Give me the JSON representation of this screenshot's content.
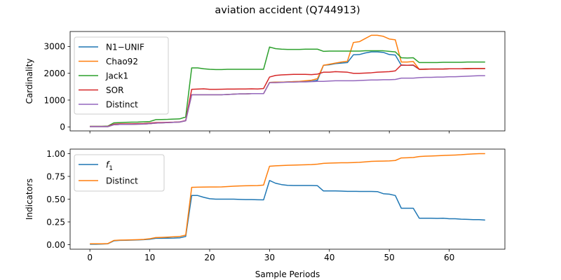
{
  "figure": {
    "title": "aviation accident (Q744913)"
  },
  "chart_data": [
    {
      "type": "line",
      "xlabel": "",
      "ylabel": "Cardinality",
      "xlim": [
        -3.3,
        69.3
      ],
      "ylim": [
        -150,
        3560
      ],
      "xticks": [
        0,
        10,
        20,
        30,
        40,
        50,
        60
      ],
      "yticks": [
        0,
        1000,
        2000,
        3000
      ],
      "ytick_labels": [
        "0",
        "1000",
        "2000",
        "3000"
      ],
      "show_xtick_labels": false,
      "grid": false,
      "legend_position": "upper left",
      "series": [
        {
          "name": "N1−UNIF",
          "color": "#1f77b4",
          "x": [
            0,
            1,
            2,
            3,
            4,
            5,
            6,
            7,
            8,
            9,
            10,
            11,
            12,
            13,
            14,
            15,
            16,
            17,
            18,
            19,
            20,
            21,
            22,
            23,
            24,
            25,
            26,
            27,
            28,
            29,
            30,
            31,
            32,
            33,
            34,
            35,
            36,
            37,
            38,
            39,
            40,
            41,
            42,
            43,
            44,
            45,
            46,
            47,
            48,
            49,
            50,
            51,
            52,
            53,
            54,
            55,
            56,
            57,
            58,
            59,
            60,
            61,
            62,
            63,
            64,
            65,
            66
          ],
          "values": [
            10,
            10,
            10,
            10,
            80,
            90,
            90,
            95,
            100,
            105,
            120,
            140,
            150,
            160,
            170,
            180,
            230,
            1200,
            1200,
            1200,
            1200,
            1200,
            1200,
            1210,
            1220,
            1230,
            1230,
            1240,
            1240,
            1240,
            1660,
            1670,
            1670,
            1680,
            1690,
            1690,
            1700,
            1700,
            1740,
            2300,
            2320,
            2360,
            2380,
            2400,
            2690,
            2700,
            2760,
            2800,
            2800,
            2780,
            2700,
            2680,
            2300,
            2300,
            2300,
            2150,
            2150,
            2160,
            2160,
            2160,
            2170,
            2170,
            2170,
            2180,
            2180,
            2180,
            2180
          ]
        },
        {
          "name": "Chao92",
          "color": "#ff7f0e",
          "x": [
            0,
            1,
            2,
            3,
            4,
            5,
            6,
            7,
            8,
            9,
            10,
            11,
            12,
            13,
            14,
            15,
            16,
            17,
            18,
            19,
            20,
            21,
            22,
            23,
            24,
            25,
            26,
            27,
            28,
            29,
            30,
            31,
            32,
            33,
            34,
            35,
            36,
            37,
            38,
            39,
            40,
            41,
            42,
            43,
            44,
            45,
            46,
            47,
            48,
            49,
            50,
            51,
            52,
            53,
            54,
            55,
            56,
            57,
            58,
            59,
            60,
            61,
            62,
            63,
            64,
            65,
            66
          ],
          "values": [
            10,
            10,
            10,
            10,
            80,
            90,
            90,
            95,
            100,
            105,
            120,
            140,
            150,
            160,
            170,
            180,
            230,
            1200,
            1200,
            1200,
            1200,
            1200,
            1200,
            1210,
            1220,
            1230,
            1230,
            1240,
            1240,
            1240,
            1660,
            1670,
            1670,
            1680,
            1690,
            1700,
            1720,
            1740,
            1800,
            2300,
            2340,
            2380,
            2420,
            2450,
            3150,
            3180,
            3300,
            3420,
            3420,
            3380,
            3280,
            3250,
            2420,
            2420,
            2440,
            2150,
            2150,
            2160,
            2160,
            2160,
            2170,
            2170,
            2170,
            2180,
            2180,
            2180,
            2180
          ]
        },
        {
          "name": "Jack1",
          "color": "#2ca02c",
          "x": [
            0,
            1,
            2,
            3,
            4,
            5,
            6,
            7,
            8,
            9,
            10,
            11,
            12,
            13,
            14,
            15,
            16,
            17,
            18,
            19,
            20,
            21,
            22,
            23,
            24,
            25,
            26,
            27,
            28,
            29,
            30,
            31,
            32,
            33,
            34,
            35,
            36,
            37,
            38,
            39,
            40,
            41,
            42,
            43,
            44,
            45,
            46,
            47,
            48,
            49,
            50,
            51,
            52,
            53,
            54,
            55,
            56,
            57,
            58,
            59,
            60,
            61,
            62,
            63,
            64,
            65,
            66
          ],
          "values": [
            20,
            20,
            20,
            30,
            150,
            160,
            170,
            175,
            180,
            190,
            200,
            270,
            275,
            280,
            290,
            300,
            370,
            2200,
            2200,
            2170,
            2150,
            2140,
            2140,
            2150,
            2150,
            2150,
            2150,
            2150,
            2150,
            2150,
            2980,
            2920,
            2900,
            2890,
            2890,
            2890,
            2900,
            2900,
            2900,
            2820,
            2830,
            2830,
            2830,
            2830,
            2830,
            2830,
            2840,
            2840,
            2840,
            2840,
            2820,
            2800,
            2580,
            2570,
            2580,
            2400,
            2400,
            2400,
            2400,
            2410,
            2410,
            2410,
            2410,
            2420,
            2420,
            2420,
            2420
          ]
        },
        {
          "name": "SOR",
          "color": "#d62728",
          "x": [
            0,
            1,
            2,
            3,
            4,
            5,
            6,
            7,
            8,
            9,
            10,
            11,
            12,
            13,
            14,
            15,
            16,
            17,
            18,
            19,
            20,
            21,
            22,
            23,
            24,
            25,
            26,
            27,
            28,
            29,
            30,
            31,
            32,
            33,
            34,
            35,
            36,
            37,
            38,
            39,
            40,
            41,
            42,
            43,
            44,
            45,
            46,
            47,
            48,
            49,
            50,
            51,
            52,
            53,
            54,
            55,
            56,
            57,
            58,
            59,
            60,
            61,
            62,
            63,
            64,
            65,
            66
          ],
          "values": [
            15,
            15,
            15,
            20,
            100,
            110,
            110,
            115,
            120,
            125,
            140,
            160,
            165,
            170,
            175,
            185,
            240,
            1400,
            1410,
            1420,
            1400,
            1400,
            1405,
            1410,
            1410,
            1415,
            1415,
            1420,
            1415,
            1430,
            1860,
            1920,
            1940,
            1950,
            1960,
            1960,
            1960,
            1950,
            1970,
            2040,
            2040,
            2060,
            2050,
            2040,
            2000,
            2000,
            2010,
            2020,
            2040,
            2050,
            2060,
            2090,
            2310,
            2300,
            2310,
            2150,
            2160,
            2160,
            2160,
            2160,
            2170,
            2170,
            2170,
            2170,
            2180,
            2180,
            2180
          ]
        },
        {
          "name": "Distinct",
          "color": "#9467bd",
          "x": [
            0,
            1,
            2,
            3,
            4,
            5,
            6,
            7,
            8,
            9,
            10,
            11,
            12,
            13,
            14,
            15,
            16,
            17,
            18,
            19,
            20,
            21,
            22,
            23,
            24,
            25,
            26,
            27,
            28,
            29,
            30,
            31,
            32,
            33,
            34,
            35,
            36,
            37,
            38,
            39,
            40,
            41,
            42,
            43,
            44,
            45,
            46,
            47,
            48,
            49,
            50,
            51,
            52,
            53,
            54,
            55,
            56,
            57,
            58,
            59,
            60,
            61,
            62,
            63,
            64,
            65,
            66
          ],
          "values": [
            10,
            10,
            10,
            10,
            80,
            90,
            90,
            95,
            100,
            105,
            120,
            140,
            150,
            160,
            170,
            180,
            230,
            1200,
            1200,
            1200,
            1200,
            1200,
            1200,
            1210,
            1220,
            1230,
            1230,
            1240,
            1240,
            1240,
            1650,
            1650,
            1660,
            1670,
            1670,
            1680,
            1680,
            1690,
            1700,
            1700,
            1710,
            1720,
            1720,
            1720,
            1720,
            1730,
            1740,
            1750,
            1750,
            1760,
            1760,
            1770,
            1820,
            1820,
            1820,
            1840,
            1850,
            1850,
            1860,
            1860,
            1870,
            1870,
            1880,
            1890,
            1900,
            1910,
            1910
          ]
        }
      ]
    },
    {
      "type": "line",
      "xlabel": "Sample Periods",
      "ylabel": "Indicators",
      "xlim": [
        -3.3,
        69.3
      ],
      "ylim": [
        -0.05,
        1.05
      ],
      "xticks": [
        0,
        10,
        20,
        30,
        40,
        50,
        60
      ],
      "xtick_labels": [
        "0",
        "10",
        "20",
        "30",
        "40",
        "50",
        "60"
      ],
      "yticks": [
        0,
        0.25,
        0.5,
        0.75,
        1.0
      ],
      "ytick_labels": [
        "0.00",
        "0.25",
        "0.50",
        "0.75",
        "1.00"
      ],
      "grid": false,
      "legend_position": "upper left",
      "series": [
        {
          "name": "f1",
          "legend_main": "f",
          "legend_sub": "1",
          "color": "#1f77b4",
          "x": [
            0,
            1,
            2,
            3,
            4,
            5,
            6,
            7,
            8,
            9,
            10,
            11,
            12,
            13,
            14,
            15,
            16,
            17,
            18,
            19,
            20,
            21,
            22,
            23,
            24,
            25,
            26,
            27,
            28,
            29,
            30,
            31,
            32,
            33,
            34,
            35,
            36,
            37,
            38,
            39,
            40,
            41,
            42,
            43,
            44,
            45,
            46,
            47,
            48,
            49,
            50,
            51,
            52,
            53,
            54,
            55,
            56,
            57,
            58,
            59,
            60,
            61,
            62,
            63,
            64,
            65,
            66
          ],
          "values": [
            0.005,
            0.005,
            0.007,
            0.01,
            0.042,
            0.047,
            0.048,
            0.05,
            0.052,
            0.055,
            0.06,
            0.07,
            0.07,
            0.071,
            0.072,
            0.075,
            0.09,
            0.54,
            0.54,
            0.52,
            0.505,
            0.5,
            0.5,
            0.5,
            0.5,
            0.497,
            0.495,
            0.495,
            0.493,
            0.492,
            0.705,
            0.675,
            0.66,
            0.652,
            0.65,
            0.65,
            0.65,
            0.65,
            0.648,
            0.59,
            0.59,
            0.59,
            0.588,
            0.586,
            0.586,
            0.585,
            0.585,
            0.585,
            0.583,
            0.56,
            0.555,
            0.54,
            0.4,
            0.4,
            0.4,
            0.29,
            0.29,
            0.29,
            0.288,
            0.29,
            0.285,
            0.285,
            0.28,
            0.278,
            0.275,
            0.275,
            0.27
          ]
        },
        {
          "name": "Distinct",
          "color": "#ff7f0e",
          "x": [
            0,
            1,
            2,
            3,
            4,
            5,
            6,
            7,
            8,
            9,
            10,
            11,
            12,
            13,
            14,
            15,
            16,
            17,
            18,
            19,
            20,
            21,
            22,
            23,
            24,
            25,
            26,
            27,
            28,
            29,
            30,
            31,
            32,
            33,
            34,
            35,
            36,
            37,
            38,
            39,
            40,
            41,
            42,
            43,
            44,
            45,
            46,
            47,
            48,
            49,
            50,
            51,
            52,
            53,
            54,
            55,
            56,
            57,
            58,
            59,
            60,
            61,
            62,
            63,
            64,
            65,
            66
          ],
          "values": [
            0.01,
            0.01,
            0.01,
            0.012,
            0.046,
            0.05,
            0.051,
            0.053,
            0.055,
            0.058,
            0.065,
            0.078,
            0.08,
            0.083,
            0.087,
            0.09,
            0.105,
            0.63,
            0.632,
            0.633,
            0.634,
            0.634,
            0.635,
            0.638,
            0.642,
            0.645,
            0.647,
            0.648,
            0.649,
            0.655,
            0.862,
            0.866,
            0.869,
            0.872,
            0.874,
            0.876,
            0.878,
            0.88,
            0.885,
            0.893,
            0.896,
            0.898,
            0.9,
            0.9,
            0.902,
            0.905,
            0.91,
            0.915,
            0.917,
            0.918,
            0.92,
            0.925,
            0.953,
            0.955,
            0.958,
            0.968,
            0.972,
            0.974,
            0.977,
            0.98,
            0.983,
            0.985,
            0.988,
            0.993,
            0.997,
            1.0,
            1.0
          ]
        }
      ]
    }
  ]
}
